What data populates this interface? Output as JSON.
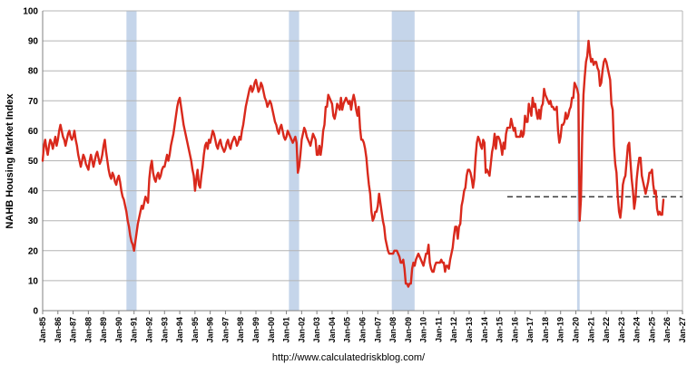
{
  "footer": {
    "url": "http://www.calculatedriskblog.com/"
  },
  "chart_data": {
    "type": "line",
    "title": "",
    "xlabel": "",
    "ylabel": "NAHB Housing Market Index",
    "ylim": [
      0,
      100
    ],
    "y_ticks": [
      0,
      10,
      20,
      30,
      40,
      50,
      60,
      70,
      80,
      90,
      100
    ],
    "grid": "horizontal",
    "legend": "none",
    "line_color": "#d9291c",
    "recession_band_color": "#c5d5ea",
    "x_range": [
      "1985-01",
      "2027-01"
    ],
    "x_tick_labels": [
      "Jan-85",
      "Jan-86",
      "Jan-87",
      "Jan-88",
      "Jan-89",
      "Jan-90",
      "Jan-91",
      "Jan-92",
      "Jan-93",
      "Jan-94",
      "Jan-95",
      "Jan-96",
      "Jan-97",
      "Jan-98",
      "Jan-99",
      "Jan-00",
      "Jan-01",
      "Jan-02",
      "Jan-03",
      "Jan-04",
      "Jan-05",
      "Jan-06",
      "Jan-07",
      "Jan-08",
      "Jan-09",
      "Jan-10",
      "Jan-11",
      "Jan-12",
      "Jan-13",
      "Jan-14",
      "Jan-15",
      "Jan-16",
      "Jan-17",
      "Jan-18",
      "Jan-19",
      "Jan-20",
      "Jan-21",
      "Jan-22",
      "Jan-23",
      "Jan-24",
      "Jan-25",
      "Jan-26",
      "Jan-27"
    ],
    "recessions": [
      {
        "start": "1990-07",
        "end": "1991-03"
      },
      {
        "start": "2001-03",
        "end": "2001-11"
      },
      {
        "start": "2007-12",
        "end": "2009-06"
      },
      {
        "start": "2020-02",
        "end": "2020-04"
      }
    ],
    "dashed_reference_line": {
      "value": 38,
      "start": "2015-07",
      "end": "2027-01"
    },
    "series": [
      {
        "name": "NAHB Housing Market Index",
        "start": "1985-01",
        "frequency": "monthly",
        "values_by_year": {
          "1985": [
            50,
            55,
            57,
            54,
            52,
            55,
            57,
            56,
            54,
            56,
            58,
            55
          ],
          "1986": [
            57,
            60,
            62,
            60,
            58,
            57,
            55,
            57,
            59,
            60,
            58,
            57
          ],
          "1987": [
            58,
            60,
            57,
            55,
            52,
            50,
            48,
            50,
            52,
            51,
            49,
            48
          ],
          "1988": [
            47,
            50,
            52,
            50,
            48,
            50,
            52,
            53,
            51,
            49,
            50,
            52
          ],
          "1989": [
            55,
            57,
            53,
            50,
            47,
            45,
            44,
            46,
            45,
            43,
            42,
            44
          ],
          "1990": [
            45,
            43,
            40,
            38,
            37,
            35,
            33,
            30,
            28,
            25,
            23,
            22
          ],
          "1991": [
            20,
            23,
            26,
            29,
            31,
            33,
            35,
            34,
            36,
            38,
            37,
            36
          ],
          "1992": [
            44,
            48,
            50,
            46,
            44,
            43,
            45,
            46,
            44,
            45,
            47,
            48
          ],
          "1993": [
            48,
            50,
            52,
            50,
            52,
            55,
            57,
            59,
            62,
            65,
            68,
            70
          ],
          "1994": [
            71,
            68,
            65,
            62,
            60,
            58,
            56,
            54,
            52,
            50,
            47,
            45
          ],
          "1995": [
            40,
            44,
            47,
            42,
            41,
            45,
            48,
            52,
            55,
            56,
            54,
            57
          ],
          "1996": [
            56,
            58,
            60,
            59,
            57,
            55,
            54,
            56,
            57,
            55,
            54,
            53
          ],
          "1997": [
            54,
            56,
            57,
            55,
            54,
            56,
            57,
            58,
            57,
            55,
            56,
            58
          ],
          "1998": [
            57,
            60,
            62,
            65,
            68,
            70,
            72,
            74,
            75,
            73,
            74,
            76
          ],
          "1999": [
            77,
            75,
            73,
            74,
            76,
            75,
            73,
            71,
            70,
            68,
            69,
            70
          ],
          "2000": [
            69,
            67,
            65,
            63,
            62,
            60,
            59,
            61,
            62,
            60,
            58,
            57
          ],
          "2001": [
            58,
            60,
            59,
            58,
            57,
            56,
            57,
            58,
            56,
            46,
            48,
            52
          ],
          "2002": [
            57,
            59,
            61,
            60,
            58,
            57,
            56,
            55,
            57,
            59,
            58,
            57
          ],
          "2003": [
            52,
            52,
            55,
            52,
            55,
            60,
            62,
            68,
            68,
            72,
            71,
            70
          ],
          "2004": [
            69,
            65,
            64,
            66,
            69,
            68,
            67,
            71,
            67,
            69,
            70,
            71
          ],
          "2005": [
            70,
            69,
            70,
            67,
            70,
            72,
            70,
            67,
            65,
            68,
            61,
            57
          ],
          "2006": [
            57,
            56,
            54,
            51,
            46,
            42,
            39,
            33,
            30,
            31,
            33,
            33
          ],
          "2007": [
            35,
            39,
            36,
            33,
            30,
            28,
            24,
            22,
            20,
            19,
            19,
            19
          ],
          "2008": [
            19,
            20,
            20,
            20,
            19,
            18,
            16,
            16,
            17,
            14,
            9,
            9
          ],
          "2009": [
            8,
            9,
            9,
            14,
            16,
            15,
            17,
            18,
            19,
            18,
            17,
            16
          ],
          "2010": [
            15,
            17,
            19,
            19,
            22,
            16,
            14,
            13,
            13,
            15,
            16,
            16
          ],
          "2011": [
            16,
            16,
            17,
            16,
            16,
            13,
            15,
            15,
            14,
            17,
            19,
            21
          ],
          "2012": [
            25,
            28,
            28,
            24,
            28,
            29,
            35,
            37,
            40,
            41,
            45,
            47
          ],
          "2013": [
            47,
            46,
            44,
            41,
            44,
            51,
            56,
            58,
            57,
            55,
            54,
            57
          ],
          "2014": [
            56,
            46,
            47,
            46,
            45,
            49,
            53,
            55,
            59,
            54,
            58,
            58
          ],
          "2015": [
            57,
            55,
            52,
            56,
            54,
            59,
            61,
            61,
            61,
            64,
            62,
            60
          ],
          "2016": [
            61,
            58,
            58,
            58,
            58,
            60,
            58,
            59,
            65,
            63,
            63,
            69
          ],
          "2017": [
            67,
            65,
            71,
            68,
            69,
            66,
            64,
            67,
            64,
            68,
            69,
            74
          ],
          "2018": [
            72,
            71,
            70,
            69,
            70,
            68,
            68,
            67,
            67,
            68,
            60,
            56
          ],
          "2019": [
            58,
            62,
            62,
            63,
            66,
            64,
            65,
            67,
            68,
            71,
            71,
            76
          ],
          "2020": [
            75,
            74,
            72,
            30,
            37,
            58,
            72,
            78,
            83,
            85,
            90,
            86
          ],
          "2021": [
            83,
            84,
            82,
            83,
            83,
            81,
            80,
            75,
            76,
            80,
            83,
            84
          ],
          "2022": [
            83,
            81,
            79,
            77,
            69,
            67,
            55,
            49,
            46,
            38,
            33,
            31
          ],
          "2023": [
            35,
            42,
            44,
            45,
            50,
            55,
            56,
            50,
            44,
            40,
            34,
            37
          ],
          "2024": [
            44,
            48,
            51,
            51,
            45,
            43,
            41,
            39,
            41,
            43,
            46,
            46
          ],
          "2025": [
            47,
            42,
            39,
            40,
            34,
            32,
            33,
            32,
            32,
            37
          ]
        }
      }
    ]
  }
}
